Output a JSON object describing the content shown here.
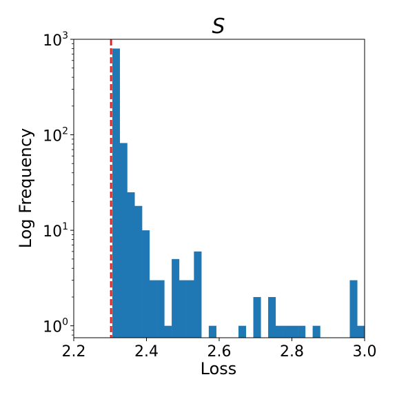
{
  "chart_data": {
    "type": "bar",
    "title": "S",
    "xlabel": "Loss",
    "ylabel": "Log Frequency",
    "yscale": "log",
    "xlim": [
      2.2,
      3.0
    ],
    "ylim": [
      0.75,
      1000
    ],
    "grid": false,
    "bar_color": "#1f77b4",
    "reference_line": {
      "x": 2.3026,
      "color": "#d62728",
      "style": "dashed"
    },
    "x_ticks": [
      {
        "value": 2.2,
        "label": "2.2"
      },
      {
        "value": 2.4,
        "label": "2.4"
      },
      {
        "value": 2.6,
        "label": "2.6"
      },
      {
        "value": 2.8,
        "label": "2.8"
      },
      {
        "value": 3.0,
        "label": "3.0"
      }
    ],
    "y_ticks": [
      {
        "value": 1,
        "base": "10",
        "exp": "0"
      },
      {
        "value": 10,
        "base": "10",
        "exp": "1"
      },
      {
        "value": 100,
        "base": "10",
        "exp": "2"
      },
      {
        "value": 1000,
        "base": "10",
        "exp": "3"
      }
    ],
    "bins": [
      {
        "x0": 2.3061,
        "x1": 2.3265,
        "count": 800
      },
      {
        "x0": 2.3265,
        "x1": 2.3469,
        "count": 82
      },
      {
        "x0": 2.3469,
        "x1": 2.3673,
        "count": 25
      },
      {
        "x0": 2.3673,
        "x1": 2.3878,
        "count": 18
      },
      {
        "x0": 2.3878,
        "x1": 2.4082,
        "count": 10
      },
      {
        "x0": 2.4082,
        "x1": 2.4286,
        "count": 3
      },
      {
        "x0": 2.4286,
        "x1": 2.449,
        "count": 3
      },
      {
        "x0": 2.449,
        "x1": 2.4694,
        "count": 1
      },
      {
        "x0": 2.4694,
        "x1": 2.4898,
        "count": 5
      },
      {
        "x0": 2.4898,
        "x1": 2.5102,
        "count": 3
      },
      {
        "x0": 2.5102,
        "x1": 2.5306,
        "count": 3
      },
      {
        "x0": 2.5306,
        "x1": 2.551,
        "count": 6
      },
      {
        "x0": 2.5714,
        "x1": 2.5918,
        "count": 1
      },
      {
        "x0": 2.6531,
        "x1": 2.6735,
        "count": 1
      },
      {
        "x0": 2.6939,
        "x1": 2.7143,
        "count": 2
      },
      {
        "x0": 2.7347,
        "x1": 2.7551,
        "count": 2
      },
      {
        "x0": 2.7551,
        "x1": 2.7755,
        "count": 1
      },
      {
        "x0": 2.7755,
        "x1": 2.7959,
        "count": 1
      },
      {
        "x0": 2.7959,
        "x1": 2.8163,
        "count": 1
      },
      {
        "x0": 2.8163,
        "x1": 2.8367,
        "count": 1
      },
      {
        "x0": 2.8571,
        "x1": 2.8776,
        "count": 1
      },
      {
        "x0": 2.9592,
        "x1": 2.9796,
        "count": 3
      },
      {
        "x0": 2.9796,
        "x1": 3.0,
        "count": 1
      }
    ]
  }
}
